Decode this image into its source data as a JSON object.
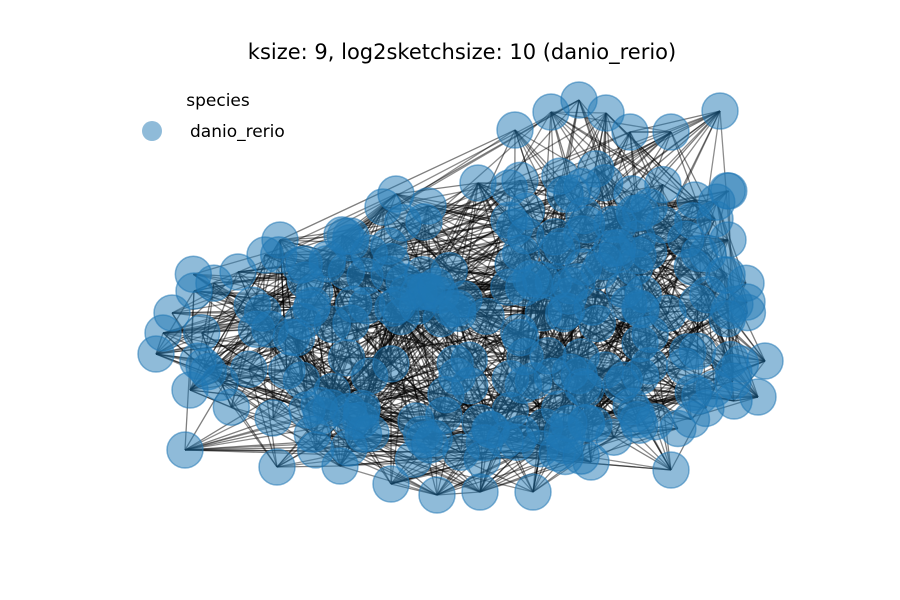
{
  "title": "ksize: 9, log2sketchsize: 10 (danio_rerio)",
  "legend": {
    "title": "species",
    "placement": "upper-left",
    "entries": [
      {
        "label": "danio_rerio",
        "color": "#1f77b4"
      }
    ]
  },
  "colors": {
    "node": "#1f77b4",
    "edge": "#000000"
  }
}
